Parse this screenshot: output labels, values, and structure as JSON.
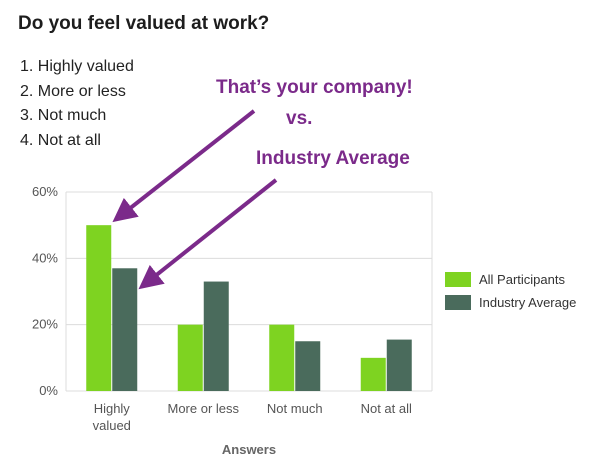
{
  "title": "Do you feel valued at work?",
  "options": [
    "1. Highly valued",
    "2. More or less",
    "3. Not much",
    "4. Not at all"
  ],
  "annotations": {
    "company": "That’s your company!",
    "vs": "vs.",
    "industry": "Industry Average"
  },
  "colors": {
    "all_participants": "#7ed321",
    "industry_average": "#4a6b5c",
    "annotation": "#7b2a8a",
    "gridline": "#dcdcdc"
  },
  "chart_data": {
    "type": "bar",
    "categories": [
      "Highly valued",
      "More or less",
      "Not much",
      "Not at all"
    ],
    "category_label_lines": [
      [
        "Highly",
        "valued"
      ],
      [
        "More or less"
      ],
      [
        "Not much"
      ],
      [
        "Not at all"
      ]
    ],
    "series": [
      {
        "name": "All Participants",
        "values": [
          50,
          20,
          20,
          10
        ]
      },
      {
        "name": "Industry Average",
        "values": [
          37,
          33,
          15,
          15.5
        ]
      }
    ],
    "xlabel": "Answers",
    "ylabel": "",
    "ylim": [
      0,
      60
    ],
    "yticks": [
      "0%",
      "20%",
      "40%",
      "60%"
    ],
    "grid": true,
    "legend": "right"
  }
}
